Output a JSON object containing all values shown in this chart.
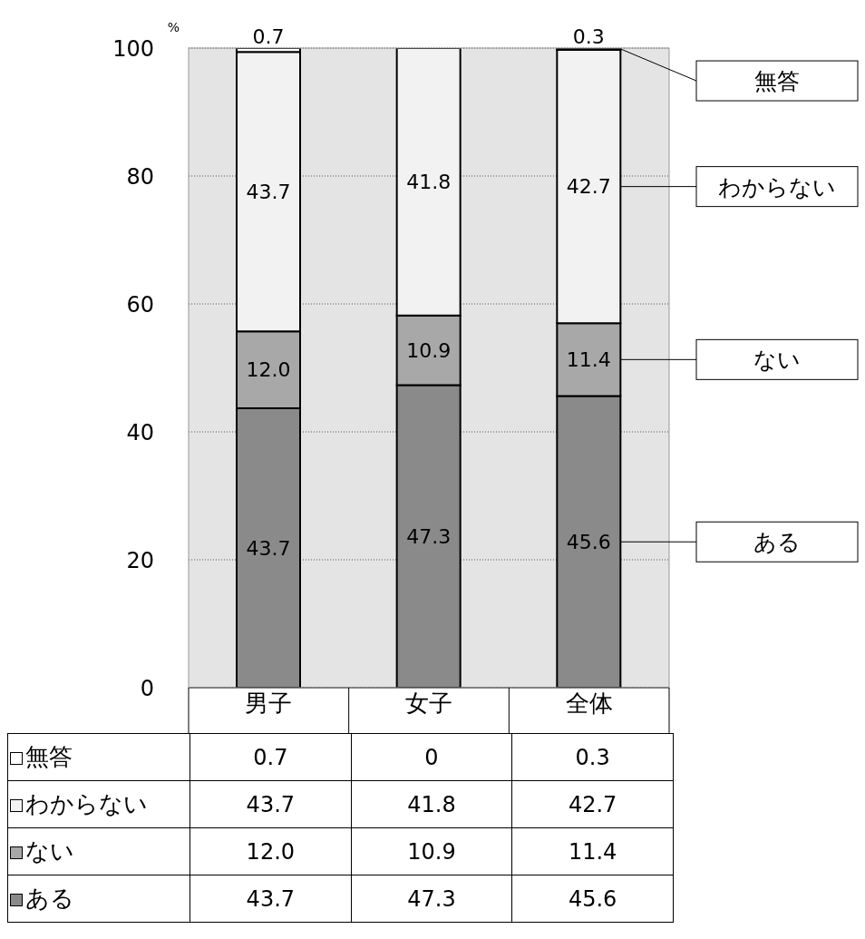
{
  "chart_data": {
    "type": "bar",
    "stacked": true,
    "ylabel": "%",
    "categories": [
      "男子",
      "女子",
      "全体"
    ],
    "ylim": [
      0,
      100
    ],
    "yticks": [
      0,
      20,
      40,
      60,
      80,
      100
    ],
    "grid": "y",
    "legend": "right",
    "series": [
      {
        "name": "ある",
        "color": "#8a8a8a",
        "values": [
          43.7,
          47.3,
          45.6
        ],
        "value_labels": [
          "43.7",
          "47.3",
          "45.6"
        ]
      },
      {
        "name": "ない",
        "color": "#a8a8a8",
        "values": [
          12.0,
          10.9,
          11.4
        ],
        "value_labels": [
          "12.0",
          "10.9",
          "11.4"
        ]
      },
      {
        "name": "わからない",
        "color": "#f2f2f2",
        "values": [
          43.7,
          41.8,
          42.7
        ],
        "value_labels": [
          "43.7",
          "41.8",
          "42.7"
        ]
      },
      {
        "name": "無答",
        "color": "#ffffff",
        "values": [
          0.7,
          0,
          0.3
        ],
        "value_labels": [
          "0.7",
          "0",
          "0.3"
        ]
      }
    ]
  }
}
